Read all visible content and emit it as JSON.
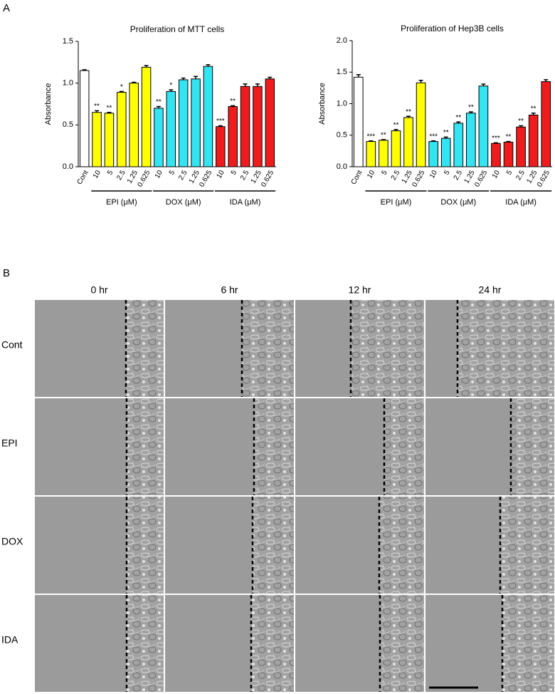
{
  "panel_a": {
    "label": "A"
  },
  "chart_data": [
    {
      "type": "bar",
      "title": "Proliferation of MTT cells",
      "y_label": "Absorbance",
      "categories": [
        "Cont",
        "10",
        "5",
        "2.5",
        "1.25",
        "0.625",
        "10",
        "5",
        "2.5",
        "1.25",
        "0.625",
        "10",
        "5",
        "2.5",
        "1.25",
        "0.625"
      ],
      "values": [
        1.15,
        0.65,
        0.64,
        0.89,
        1.0,
        1.19,
        0.7,
        0.9,
        1.04,
        1.05,
        1.2,
        0.48,
        0.72,
        0.96,
        0.96,
        1.05
      ],
      "errors": [
        0.01,
        0.02,
        0.01,
        0.01,
        0.01,
        0.02,
        0.02,
        0.02,
        0.02,
        0.03,
        0.02,
        0.01,
        0.01,
        0.03,
        0.03,
        0.02
      ],
      "annotations": [
        null,
        "**",
        "**",
        "*",
        null,
        null,
        "**",
        "*",
        null,
        null,
        null,
        "***",
        "**",
        null,
        null,
        null
      ],
      "colors": [
        "#ffffff",
        "#ffff00",
        "#ffff00",
        "#ffff00",
        "#ffff00",
        "#ffff00",
        "#33e5f2",
        "#33e5f2",
        "#33e5f2",
        "#33e5f2",
        "#33e5f2",
        "#ee1c1c",
        "#ee1c1c",
        "#ee1c1c",
        "#ee1c1c",
        "#ee1c1c"
      ],
      "groups": [
        "EPI (μM)",
        "DOX (μM)",
        "IDA (μM)"
      ],
      "ylim": [
        0,
        1.5
      ],
      "yticks": [
        {
          "value": 0,
          "label": "0.0"
        },
        0.5,
        {
          "value": 1,
          "label": "1.0"
        },
        1.5
      ]
    },
    {
      "type": "bar",
      "title": "Proliferation of Hep3B cells",
      "y_label": "Absorbance",
      "categories": [
        "Cont",
        "10",
        "5",
        "2.5",
        "1.25",
        "0.625",
        "10",
        "5",
        "2.5",
        "1.25",
        "0.625",
        "10",
        "5",
        "2.5",
        "1.25",
        "0.625"
      ],
      "values": [
        1.42,
        0.4,
        0.42,
        0.57,
        0.78,
        1.33,
        0.4,
        0.45,
        0.69,
        0.85,
        1.28,
        0.37,
        0.39,
        0.63,
        0.82,
        1.35
      ],
      "errors": [
        0.04,
        0.01,
        0.01,
        0.02,
        0.02,
        0.04,
        0.01,
        0.02,
        0.02,
        0.02,
        0.03,
        0.01,
        0.01,
        0.02,
        0.03,
        0.03
      ],
      "annotations": [
        null,
        "***",
        "**",
        "**",
        "**",
        null,
        "***",
        "**",
        "**",
        "**",
        null,
        "***",
        "**",
        "**",
        "**",
        null
      ],
      "colors": [
        "#ffffff",
        "#ffff00",
        "#ffff00",
        "#ffff00",
        "#ffff00",
        "#ffff00",
        "#33e5f2",
        "#33e5f2",
        "#33e5f2",
        "#33e5f2",
        "#33e5f2",
        "#ee1c1c",
        "#ee1c1c",
        "#ee1c1c",
        "#ee1c1c",
        "#ee1c1c"
      ],
      "groups": [
        "EPI (μM)",
        "DOX (μM)",
        "IDA (μM)"
      ],
      "ylim": [
        0,
        2
      ],
      "yticks": [
        {
          "value": 0,
          "label": "0.0"
        },
        0.5,
        {
          "value": 1,
          "label": "1.0"
        },
        1.5,
        {
          "value": 2,
          "label": "2.0"
        }
      ]
    }
  ],
  "panel_b": {
    "label": "B",
    "columns": [
      "0 hr",
      "6 hr",
      "12 hr",
      "24 hr"
    ],
    "rows": [
      "Cont",
      "EPI",
      "DOX",
      "IDA"
    ]
  }
}
